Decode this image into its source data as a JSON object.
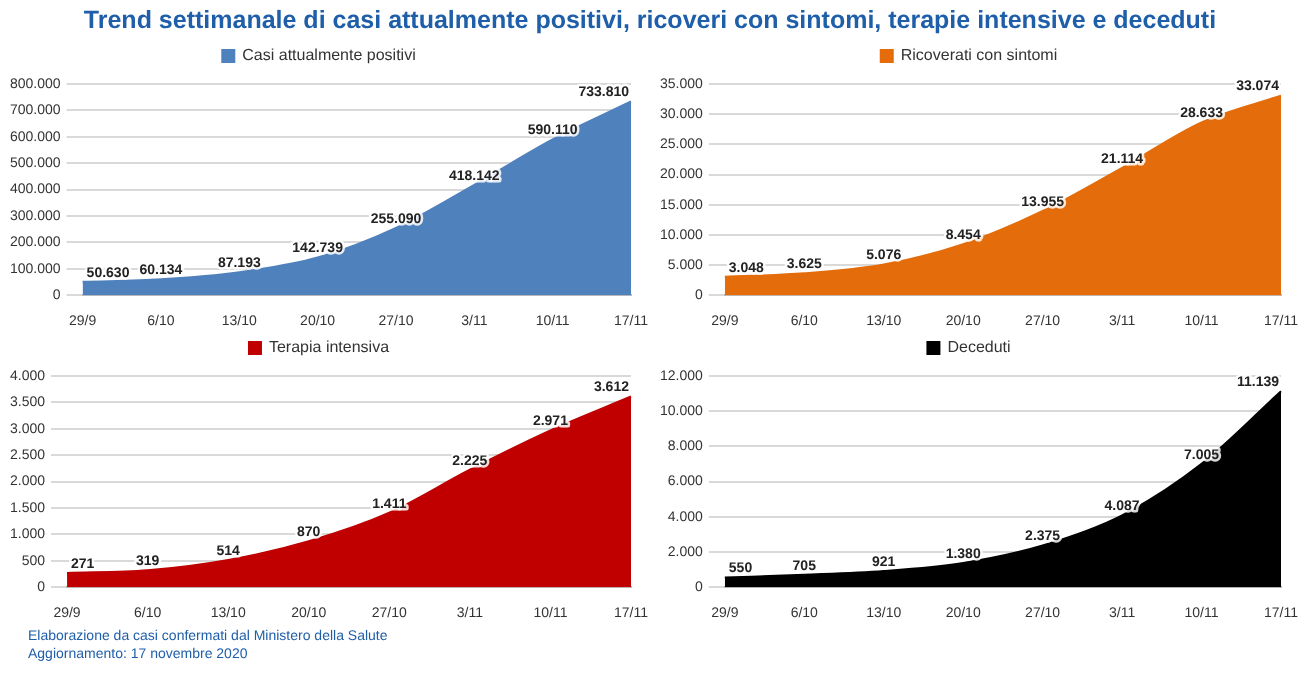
{
  "chart_data": [
    {
      "type": "area",
      "title": "Trend settimanale di casi attualmente positivi, ricoveri con sintomi, terapie intensive e deceduti",
      "categories": [
        "29/9",
        "6/10",
        "13/10",
        "20/10",
        "27/10",
        "3/11",
        "10/11",
        "17/11"
      ],
      "series": [
        {
          "name": "Casi attualmente positivi",
          "color": "#4f81bd",
          "values": [
            50630,
            60134,
            87193,
            142739,
            255090,
            418142,
            590110,
            733810
          ],
          "value_labels": [
            "50.630",
            "60.134",
            "87.193",
            "142.739",
            "255.090",
            "418.142",
            "590.110",
            "733.810"
          ]
        }
      ],
      "ylim": [
        0,
        800000
      ],
      "yticks": [
        {
          "value": 0,
          "label": "0"
        },
        {
          "value": 100000,
          "label": "100.000"
        },
        {
          "value": 200000,
          "label": "200.000"
        },
        {
          "value": 300000,
          "label": "300.000"
        },
        {
          "value": 400000,
          "label": "400.000"
        },
        {
          "value": 500000,
          "label": "500.000"
        },
        {
          "value": 600000,
          "label": "600.000"
        },
        {
          "value": 700000,
          "label": "700.000"
        },
        {
          "value": 800000,
          "label": "800.000"
        }
      ],
      "grid": "y",
      "legend": "top"
    },
    {
      "type": "area",
      "categories": [
        "29/9",
        "6/10",
        "13/10",
        "20/10",
        "27/10",
        "3/11",
        "10/11",
        "17/11"
      ],
      "series": [
        {
          "name": "Ricoverati con sintomi",
          "color": "#e46c0a",
          "values": [
            3048,
            3625,
            5076,
            8454,
            13955,
            21114,
            28633,
            33074
          ],
          "value_labels": [
            "3.048",
            "3.625",
            "5.076",
            "8.454",
            "13.955",
            "21.114",
            "28.633",
            "33.074"
          ]
        }
      ],
      "ylim": [
        0,
        35000
      ],
      "yticks": [
        {
          "value": 0,
          "label": "0"
        },
        {
          "value": 5000,
          "label": "5.000"
        },
        {
          "value": 10000,
          "label": "10.000"
        },
        {
          "value": 15000,
          "label": "15.000"
        },
        {
          "value": 20000,
          "label": "20.000"
        },
        {
          "value": 25000,
          "label": "25.000"
        },
        {
          "value": 30000,
          "label": "30.000"
        },
        {
          "value": 35000,
          "label": "35.000"
        }
      ],
      "grid": "y",
      "legend": "top"
    },
    {
      "type": "area",
      "categories": [
        "29/9",
        "6/10",
        "13/10",
        "20/10",
        "27/10",
        "3/11",
        "10/11",
        "17/11"
      ],
      "series": [
        {
          "name": "Terapia intensiva",
          "color": "#c00000",
          "values": [
            271,
            319,
            514,
            870,
            1411,
            2225,
            2971,
            3612
          ],
          "value_labels": [
            "271",
            "319",
            "514",
            "870",
            "1.411",
            "2.225",
            "2.971",
            "3.612"
          ]
        }
      ],
      "ylim": [
        0,
        4000
      ],
      "yticks": [
        {
          "value": 0,
          "label": "0"
        },
        {
          "value": 500,
          "label": "500"
        },
        {
          "value": 1000,
          "label": "1.000"
        },
        {
          "value": 1500,
          "label": "1.500"
        },
        {
          "value": 2000,
          "label": "2.000"
        },
        {
          "value": 2500,
          "label": "2.500"
        },
        {
          "value": 3000,
          "label": "3.000"
        },
        {
          "value": 3500,
          "label": "3.500"
        },
        {
          "value": 4000,
          "label": "4.000"
        }
      ],
      "grid": "y",
      "legend": "top",
      "annotations": [
        "Elaborazione da casi confermati dal Ministero della Salute",
        "Aggiornamento: 17 novembre 2020"
      ]
    },
    {
      "type": "area",
      "categories": [
        "29/9",
        "6/10",
        "13/10",
        "20/10",
        "27/10",
        "3/11",
        "10/11",
        "17/11"
      ],
      "series": [
        {
          "name": "Deceduti",
          "color": "#000000",
          "values": [
            550,
            705,
            921,
            1380,
            2375,
            4087,
            7005,
            11139
          ],
          "value_labels": [
            "550",
            "705",
            "921",
            "1.380",
            "2.375",
            "4.087",
            "7.005",
            "11.139"
          ]
        }
      ],
      "ylim": [
        0,
        12000
      ],
      "yticks": [
        {
          "value": 0,
          "label": "0"
        },
        {
          "value": 2000,
          "label": "2.000"
        },
        {
          "value": 4000,
          "label": "4.000"
        },
        {
          "value": 6000,
          "label": "6.000"
        },
        {
          "value": 8000,
          "label": "8.000"
        },
        {
          "value": 10000,
          "label": "10.000"
        },
        {
          "value": 12000,
          "label": "12.000"
        }
      ],
      "grid": "y",
      "legend": "top"
    }
  ]
}
